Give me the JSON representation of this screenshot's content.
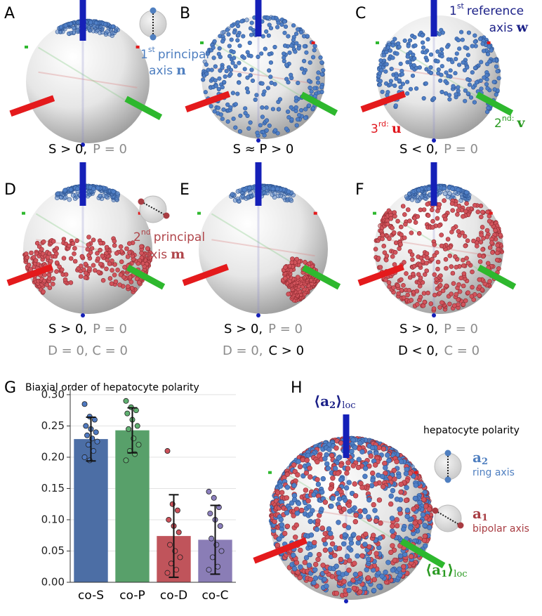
{
  "panels": [
    {
      "letter": "A",
      "lines": [
        [
          {
            "text": "S > 0,",
            "tone": "black"
          },
          {
            "text": "P = 0",
            "tone": "gray"
          }
        ]
      ]
    },
    {
      "letter": "B",
      "lines": [
        [
          {
            "text": "S ≈ P > 0",
            "tone": "black"
          }
        ]
      ]
    },
    {
      "letter": "C",
      "lines": [
        [
          {
            "text": "S < 0,",
            "tone": "black"
          },
          {
            "text": "P = 0",
            "tone": "gray"
          }
        ]
      ]
    },
    {
      "letter": "D",
      "lines": [
        [
          {
            "text": "S > 0,",
            "tone": "black"
          },
          {
            "text": "P = 0",
            "tone": "gray"
          }
        ],
        [
          {
            "text": "D = 0, C = 0",
            "tone": "gray"
          }
        ]
      ]
    },
    {
      "letter": "E",
      "lines": [
        [
          {
            "text": "S > 0,",
            "tone": "black"
          },
          {
            "text": "P = 0",
            "tone": "gray"
          }
        ],
        [
          {
            "text": "D = 0,",
            "tone": "gray"
          },
          {
            "text": "C > 0",
            "tone": "black"
          }
        ]
      ]
    },
    {
      "letter": "F",
      "lines": [
        [
          {
            "text": "S > 0,",
            "tone": "black"
          },
          {
            "text": "P = 0",
            "tone": "gray"
          }
        ],
        [
          {
            "text": "D < 0,",
            "tone": "black"
          },
          {
            "text": "C = 0",
            "tone": "gray"
          }
        ]
      ]
    }
  ],
  "annotations": {
    "principal_1": {
      "num": "1",
      "sup": "st",
      "word": "principal",
      "axis": "axis",
      "symbol": "n"
    },
    "reference_1": {
      "num": "1",
      "sup": "st",
      "word": "reference",
      "axis": "axis",
      "symbol": "w"
    },
    "third": {
      "num": "3",
      "sup": "rd:",
      "symbol": "u"
    },
    "second": {
      "num": "2",
      "sup": "nd:",
      "symbol": "v"
    },
    "principal_2": {
      "num": "2",
      "sup": "nd",
      "word": "principal",
      "axis": "axis",
      "symbol": "m"
    }
  },
  "panel_g": {
    "letter": "G"
  },
  "panel_h": {
    "letter": "H",
    "top_axis": {
      "symbol": "⟨a",
      "sub": "2",
      "close": "⟩",
      "loc": "loc"
    },
    "side_axis": {
      "symbol": "⟨a",
      "sub": "1",
      "close": "⟩",
      "loc": "loc"
    },
    "legend_title": "hepatocyte polarity",
    "ring": {
      "symbol": "a",
      "sub": "2",
      "text": "ring axis"
    },
    "bipolar": {
      "symbol": "a",
      "sub": "1",
      "text": "bipolar axis"
    }
  },
  "chart_data": {
    "type": "bar",
    "title": "Biaxial order of hepatocyte polarity",
    "categories": [
      "co-S",
      "co-P",
      "co-D",
      "co-C"
    ],
    "values": [
      0.229,
      0.243,
      0.074,
      0.068
    ],
    "errors": [
      0.035,
      0.036,
      0.066,
      0.055
    ],
    "colors": [
      "#4c6ea5",
      "#58a06a",
      "#c0545b",
      "#8a7db6"
    ],
    "point_colors": [
      "#4f79c0",
      "#5fb070",
      "#cc5059",
      "#8b7fbd"
    ],
    "points": [
      [
        0.285,
        0.265,
        0.26,
        0.25,
        0.245,
        0.24,
        0.235,
        0.23,
        0.225,
        0.22,
        0.21,
        0.2,
        0.195
      ],
      [
        0.29,
        0.28,
        0.275,
        0.27,
        0.26,
        0.25,
        0.245,
        0.23,
        0.22,
        0.21,
        0.205,
        0.195
      ],
      [
        0.21,
        0.125,
        0.115,
        0.1,
        0.09,
        0.08,
        0.06,
        0.05,
        0.04,
        0.03,
        0.02,
        0.015
      ],
      [
        0.145,
        0.135,
        0.12,
        0.11,
        0.1,
        0.09,
        0.07,
        0.06,
        0.05,
        0.04,
        0.025,
        0.02
      ]
    ],
    "ylim": [
      0,
      0.31
    ],
    "yticks": [
      {
        "value": 0,
        "label": "0.00"
      },
      {
        "value": 0.05,
        "label": "0.05"
      },
      {
        "value": 0.1,
        "label": "0.10"
      },
      {
        "value": 0.15,
        "label": "0.15"
      },
      {
        "value": 0.2,
        "label": "0.20"
      },
      {
        "value": 0.25,
        "label": "0.25"
      },
      {
        "value": 0.3,
        "label": "0.30"
      }
    ],
    "grid": true
  }
}
